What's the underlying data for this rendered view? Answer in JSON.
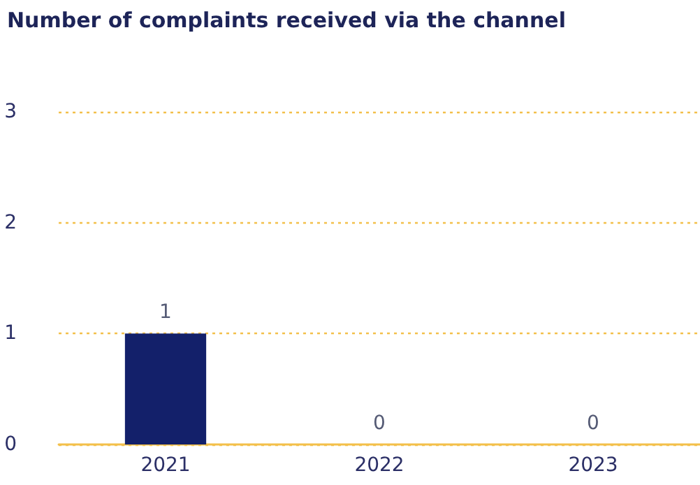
{
  "chart_data": {
    "type": "bar",
    "title": "Number of complaints received via the channel",
    "categories": [
      "2021",
      "2022",
      "2023"
    ],
    "values": [
      1,
      0,
      0
    ],
    "color": "#13206a",
    "ylim": [
      0,
      3
    ],
    "yticks": [
      0,
      1,
      2,
      3
    ],
    "grid": "y",
    "data_labels": true
  }
}
